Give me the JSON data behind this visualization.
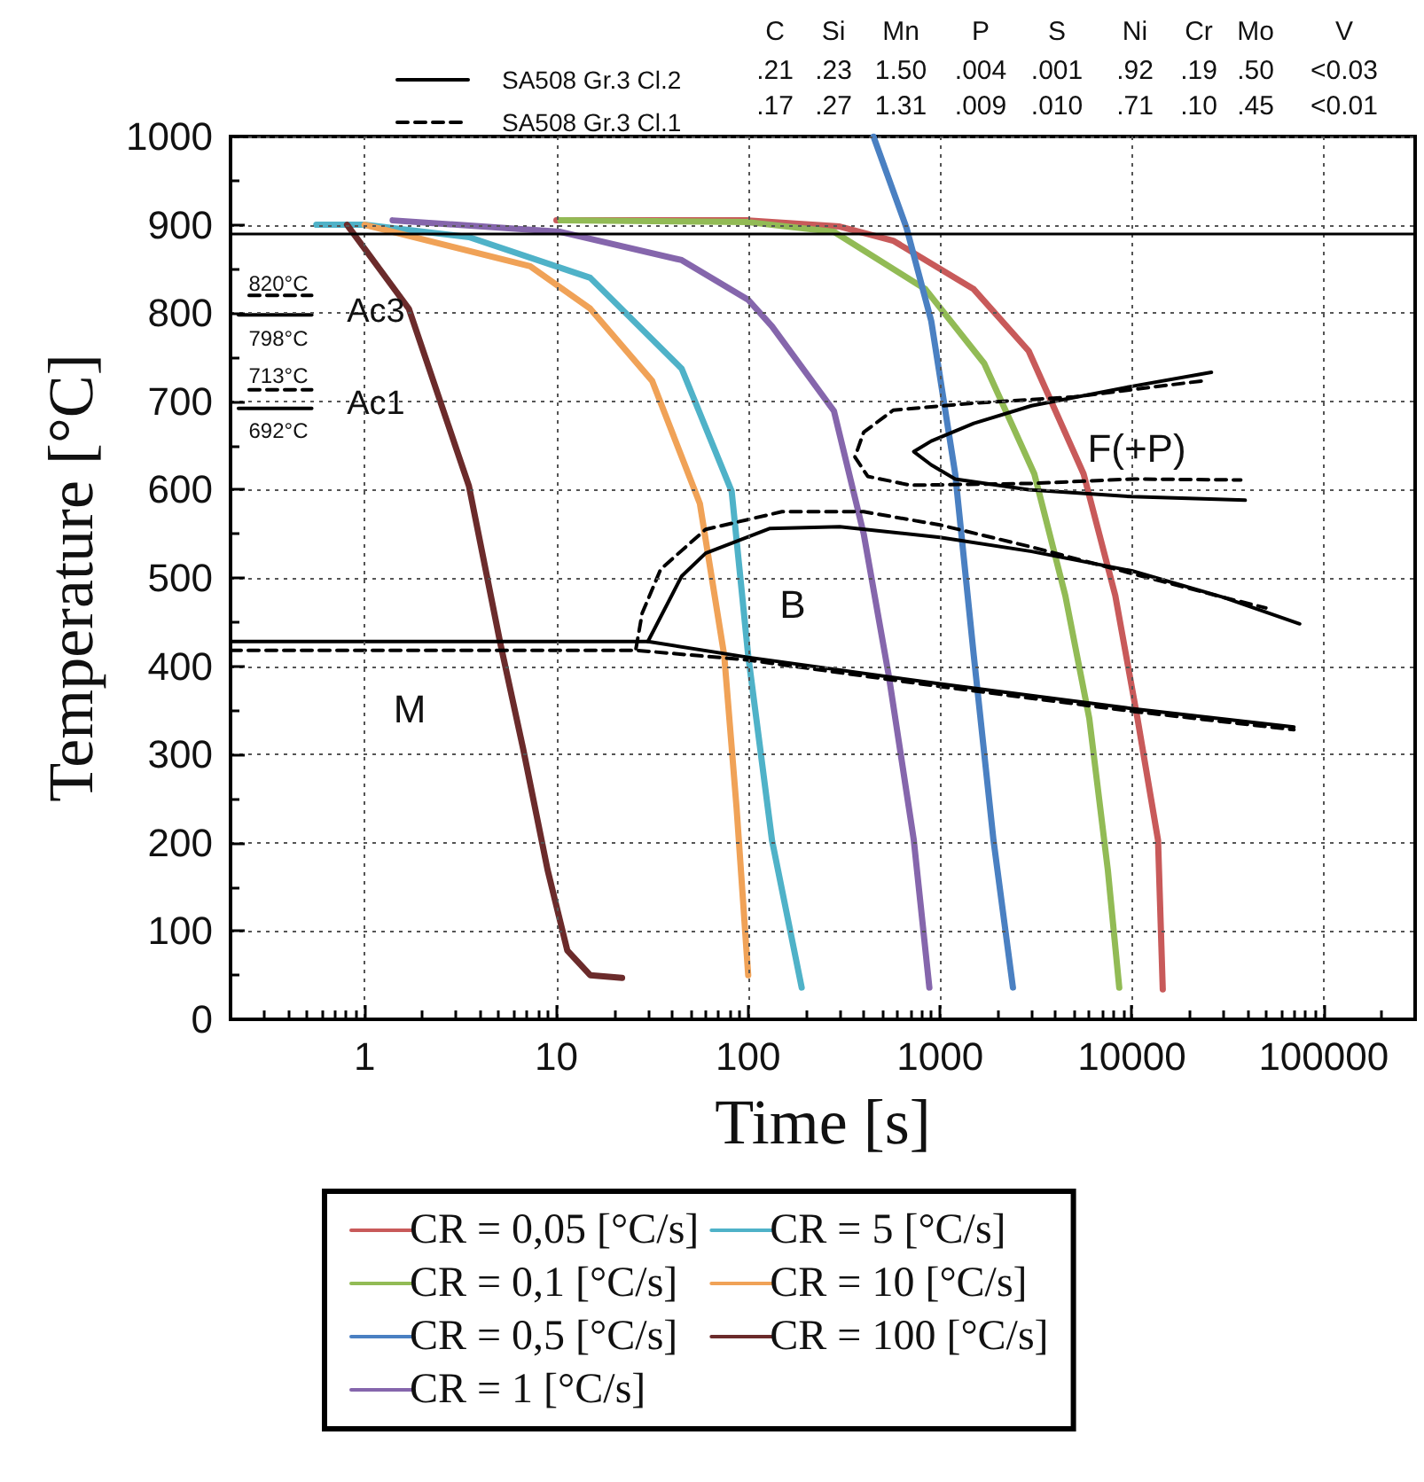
{
  "chart_data": {
    "type": "line",
    "xlabel": "Time [s]",
    "ylabel": "Temperature [°C]",
    "log": "x",
    "xlim": [
      0.2,
      300000
    ],
    "ylim": [
      0,
      1000
    ],
    "xticks": [
      {
        "value": 0.2,
        "label": null
      },
      {
        "value": 0.3,
        "label": null
      },
      {
        "value": 0.4,
        "label": null
      },
      {
        "value": 0.5,
        "label": null
      },
      {
        "value": 0.6,
        "label": null
      },
      {
        "value": 0.7,
        "label": null
      },
      {
        "value": 0.8,
        "label": null
      },
      {
        "value": 0.9,
        "label": null
      },
      1,
      {
        "value": 2,
        "label": null
      },
      {
        "value": 3,
        "label": null
      },
      {
        "value": 4,
        "label": null
      },
      {
        "value": 5,
        "label": null
      },
      {
        "value": 6,
        "label": null
      },
      {
        "value": 7,
        "label": null
      },
      {
        "value": 8,
        "label": null
      },
      {
        "value": 9,
        "label": null
      },
      10,
      {
        "value": 20,
        "label": null
      },
      {
        "value": 30,
        "label": null
      },
      {
        "value": 40,
        "label": null
      },
      {
        "value": 50,
        "label": null
      },
      {
        "value": 60,
        "label": null
      },
      {
        "value": 70,
        "label": null
      },
      {
        "value": 80,
        "label": null
      },
      {
        "value": 90,
        "label": null
      },
      100,
      {
        "value": 200,
        "label": null
      },
      {
        "value": 300,
        "label": null
      },
      {
        "value": 400,
        "label": null
      },
      {
        "value": 500,
        "label": null
      },
      {
        "value": 600,
        "label": null
      },
      {
        "value": 700,
        "label": null
      },
      {
        "value": 800,
        "label": null
      },
      {
        "value": 900,
        "label": null
      },
      1000,
      {
        "value": 2000,
        "label": null
      },
      {
        "value": 3000,
        "label": null
      },
      {
        "value": 4000,
        "label": null
      },
      {
        "value": 5000,
        "label": null
      },
      {
        "value": 6000,
        "label": null
      },
      {
        "value": 7000,
        "label": null
      },
      {
        "value": 8000,
        "label": null
      },
      {
        "value": 9000,
        "label": null
      },
      10000,
      {
        "value": 20000,
        "label": null
      },
      {
        "value": 30000,
        "label": null
      },
      {
        "value": 40000,
        "label": null
      },
      {
        "value": 50000,
        "label": null
      },
      {
        "value": 60000,
        "label": null
      },
      {
        "value": 70000,
        "label": null
      },
      {
        "value": 80000,
        "label": null
      },
      {
        "value": 90000,
        "label": null
      },
      100000,
      {
        "value": 200000,
        "label": null
      }
    ],
    "yticks": [
      0,
      {
        "value": 50,
        "label": null
      },
      100,
      {
        "value": 150,
        "label": null
      },
      200,
      {
        "value": 250,
        "label": null
      },
      300,
      {
        "value": 350,
        "label": null
      },
      400,
      {
        "value": 450,
        "label": null
      },
      500,
      {
        "value": 550,
        "label": null
      },
      600,
      {
        "value": 650,
        "label": null
      },
      700,
      {
        "value": 750,
        "label": null
      },
      800,
      {
        "value": 850,
        "label": null
      },
      900,
      {
        "value": 950,
        "label": null
      },
      1000
    ],
    "grid": true,
    "legend": "bottom",
    "marker": "none",
    "series": [
      {
        "name": "CR = 0,05 [°C/s]",
        "color": "#c85a5a",
        "x": [
          10,
          100,
          300,
          570,
          1500,
          2900,
          5600,
          8200,
          10700,
          13700,
          14500
        ],
        "values": [
          905,
          905,
          898,
          882,
          827,
          757,
          618,
          480,
          341,
          203,
          34
        ]
      },
      {
        "name": "CR = 0,1 [°C/s]",
        "color": "#92bb55",
        "x": [
          10.5,
          100,
          280,
          840,
          1700,
          3100,
          4500,
          6000,
          7500,
          8600
        ],
        "values": [
          905,
          903,
          892,
          827,
          743,
          618,
          480,
          341,
          169,
          36
        ]
      },
      {
        "name": "CR = 0,5 [°C/s]",
        "color": "#4a80c2",
        "x": [
          450,
          670,
          900,
          1200,
          1500,
          1900,
          2400
        ],
        "values": [
          1000,
          896,
          791,
          618,
          412,
          203,
          36
        ]
      },
      {
        "name": "CR = 1 [°C/s]",
        "color": "#8566ac",
        "x": [
          1.4,
          10.5,
          45,
          100,
          133,
          280,
          400,
          540,
          730,
          880
        ],
        "values": [
          905,
          892,
          860,
          815,
          785,
          689,
          550,
          390,
          203,
          36
        ]
      },
      {
        "name": "CR = 5 [°C/s]",
        "color": "#4fb2c8",
        "x": [
          0.56,
          1,
          3.5,
          15,
          45,
          82,
          100,
          133,
          190
        ],
        "values": [
          900,
          900,
          886,
          840,
          737,
          598,
          412,
          203,
          36
        ]
      },
      {
        "name": "CR = 10 [°C/s]",
        "color": "#f0a257",
        "x": [
          1,
          7.3,
          15,
          31.6,
          56,
          75,
          87,
          100
        ],
        "values": [
          900,
          853,
          805,
          723,
          584,
          412,
          239,
          50
        ]
      },
      {
        "name": "CR = 100 [°C/s]",
        "color": "#6b2b2b",
        "x": [
          0.81,
          1.7,
          3.5,
          5.1,
          6.7,
          9,
          11.4,
          15,
          22
        ],
        "values": [
          900,
          805,
          604,
          426,
          307,
          169,
          78,
          50,
          47
        ]
      },
      {
        "name": "SA508 Gr.3 Cl.2",
        "color": "#000000",
        "line_style": "solid",
        "x": [
          0.2,
          30,
          100,
          1000,
          10000,
          70000
        ],
        "values": [
          428,
          428,
          410,
          380,
          352,
          331
        ]
      },
      {
        "name": "SA508 Gr.3 Cl.1",
        "color": "#000000",
        "line_style": "dashed",
        "x": [
          0.2,
          26,
          100,
          1000,
          10000,
          70000
        ],
        "values": [
          418,
          418,
          407,
          377,
          349,
          328
        ]
      },
      {
        "color": "#000000",
        "line_style": "solid",
        "x": [
          30,
          45,
          60,
          130,
          300,
          1000,
          3000,
          10000,
          30000,
          75000
        ],
        "values": [
          428,
          502,
          528,
          556,
          558,
          546,
          530,
          508,
          478,
          448
        ]
      },
      {
        "color": "#000000",
        "line_style": "solid",
        "x": [
          26000,
          10000,
          3000,
          1500,
          900,
          730,
          900,
          1200,
          2900,
          10000,
          39000
        ],
        "values": [
          733,
          717,
          695,
          675,
          655,
          643,
          628,
          612,
          600,
          592,
          588
        ]
      },
      {
        "color": "#000000",
        "line_style": "solid",
        "x": [
          0.22,
          0.53
        ],
        "values": [
          798,
          798
        ]
      },
      {
        "color": "#000000",
        "line_style": "solid",
        "x": [
          0.22,
          0.53
        ],
        "values": [
          692,
          692
        ]
      },
      {
        "color": "#000000",
        "line_style": "dashed",
        "x": [
          26,
          28,
          35,
          60,
          150,
          400,
          1000,
          3000,
          10000,
          30000,
          50000
        ],
        "values": [
          420,
          460,
          510,
          555,
          575,
          575,
          560,
          535,
          505,
          478,
          466
        ]
      },
      {
        "color": "#000000",
        "line_style": "dashed",
        "x": [
          23000,
          5000,
          1500,
          570,
          400,
          360,
          420,
          700,
          3000,
          10000,
          37000
        ],
        "values": [
          723,
          705,
          698,
          690,
          665,
          637,
          615,
          605,
          607,
          612,
          611
        ]
      },
      {
        "color": "#000000",
        "line_style": "dashed",
        "x": [
          0.25,
          0.53
        ],
        "values": [
          820,
          820
        ]
      },
      {
        "color": "#000000",
        "line_style": "dashed",
        "x": [
          0.25,
          0.53
        ],
        "values": [
          713,
          713
        ]
      }
    ],
    "ref_lines": [
      {
        "axis": "y",
        "value": 890,
        "color": "#000000",
        "line_style": "solid"
      }
    ],
    "annotations": [
      "C Si Mn P S Ni Cr Mo V",
      ".21 .23 1.50 .004 .001 .92 .19 .50 <0.03",
      ".17 .27 1.31 .009 .010 .71 .10 .45 <0.01",
      "820°C",
      "798°C",
      "713°C",
      "692°C",
      "Ac3",
      "Ac1",
      "M",
      "B",
      "F(+P)"
    ]
  }
}
